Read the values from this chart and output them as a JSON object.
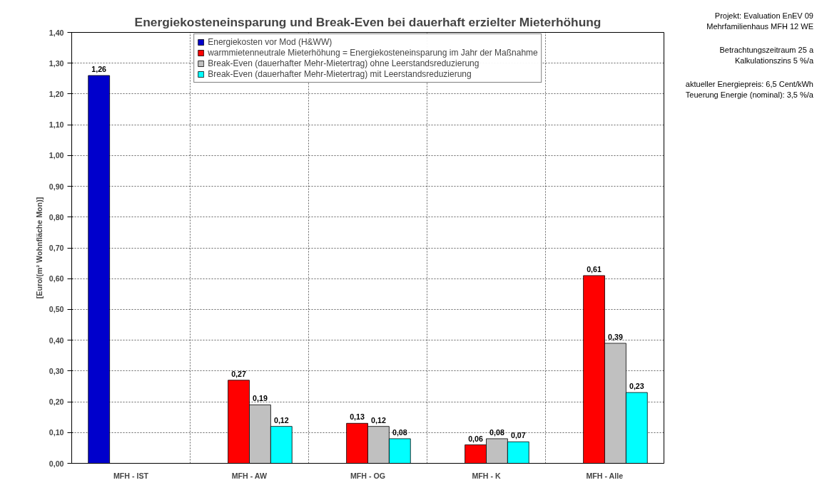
{
  "chart_data": {
    "type": "bar",
    "title": "Energiekosteneinsparung und Break-Even bei dauerhaft erzielter Mieterhöhung",
    "ylabel": "[Euro/(m² Wohnfläche Mon)]",
    "categories": [
      "MFH - IST",
      "MFH - AW",
      "MFH - OG",
      "MFH - K",
      "MFH - Alle"
    ],
    "series": [
      {
        "name": "Energiekosten vor Mod (H&WW)",
        "color": "#0000cc",
        "values": [
          1.26,
          null,
          null,
          null,
          null
        ],
        "value_labels": [
          "1,26",
          null,
          null,
          null,
          null
        ]
      },
      {
        "name": "warmmietenneutrale Mieterhöhung = Energiekosteneinsparung im Jahr der Maßnahme",
        "color": "#ff0000",
        "values": [
          null,
          0.27,
          0.13,
          0.06,
          0.61
        ],
        "value_labels": [
          null,
          "0,27",
          "0,13",
          "0,06",
          "0,61"
        ]
      },
      {
        "name": "Break-Even (dauerhafter Mehr-Mietertrag) ohne Leerstandsreduzierung",
        "color": "#c0c0c0",
        "values": [
          null,
          0.19,
          0.12,
          0.08,
          0.39
        ],
        "value_labels": [
          null,
          "0,19",
          "0,12",
          "0,08",
          "0,39"
        ]
      },
      {
        "name": "Break-Even (dauerhafter Mehr-Mietertrag) mit Leerstandsreduzierung",
        "color": "#00ffff",
        "values": [
          null,
          0.12,
          0.08,
          0.07,
          0.23
        ],
        "value_labels": [
          null,
          "0,12",
          "0,08",
          "0,07",
          "0,23"
        ]
      }
    ],
    "ylim": [
      0,
      1.4
    ],
    "yticks": [
      {
        "value": 0,
        "label": "0,00"
      },
      {
        "value": 0.1,
        "label": "0,10"
      },
      {
        "value": 0.2,
        "label": "0,20"
      },
      {
        "value": 0.3,
        "label": "0,30"
      },
      {
        "value": 0.4,
        "label": "0,40"
      },
      {
        "value": 0.5,
        "label": "0,50"
      },
      {
        "value": 0.6,
        "label": "0,60"
      },
      {
        "value": 0.7,
        "label": "0,70"
      },
      {
        "value": 0.8,
        "label": "0,80"
      },
      {
        "value": 0.9,
        "label": "0,90"
      },
      {
        "value": 1.0,
        "label": "1,00"
      },
      {
        "value": 1.1,
        "label": "1,10"
      },
      {
        "value": 1.2,
        "label": "1,20"
      },
      {
        "value": 1.3,
        "label": "1,30"
      },
      {
        "value": 1.4,
        "label": "1,40"
      }
    ],
    "grid": true,
    "legend": "top",
    "annotations": [
      "Projekt: Evaluation EnEV 09",
      "Mehrfamilienhaus MFH  12 WE",
      "Betrachtungszeitraum 25 a",
      "Kalkulationszins 5 %/a",
      "aktueller Energiepreis: 6,5 Cent/kWh",
      "Teuerung Energie (nominal): 3,5 %/a"
    ]
  }
}
